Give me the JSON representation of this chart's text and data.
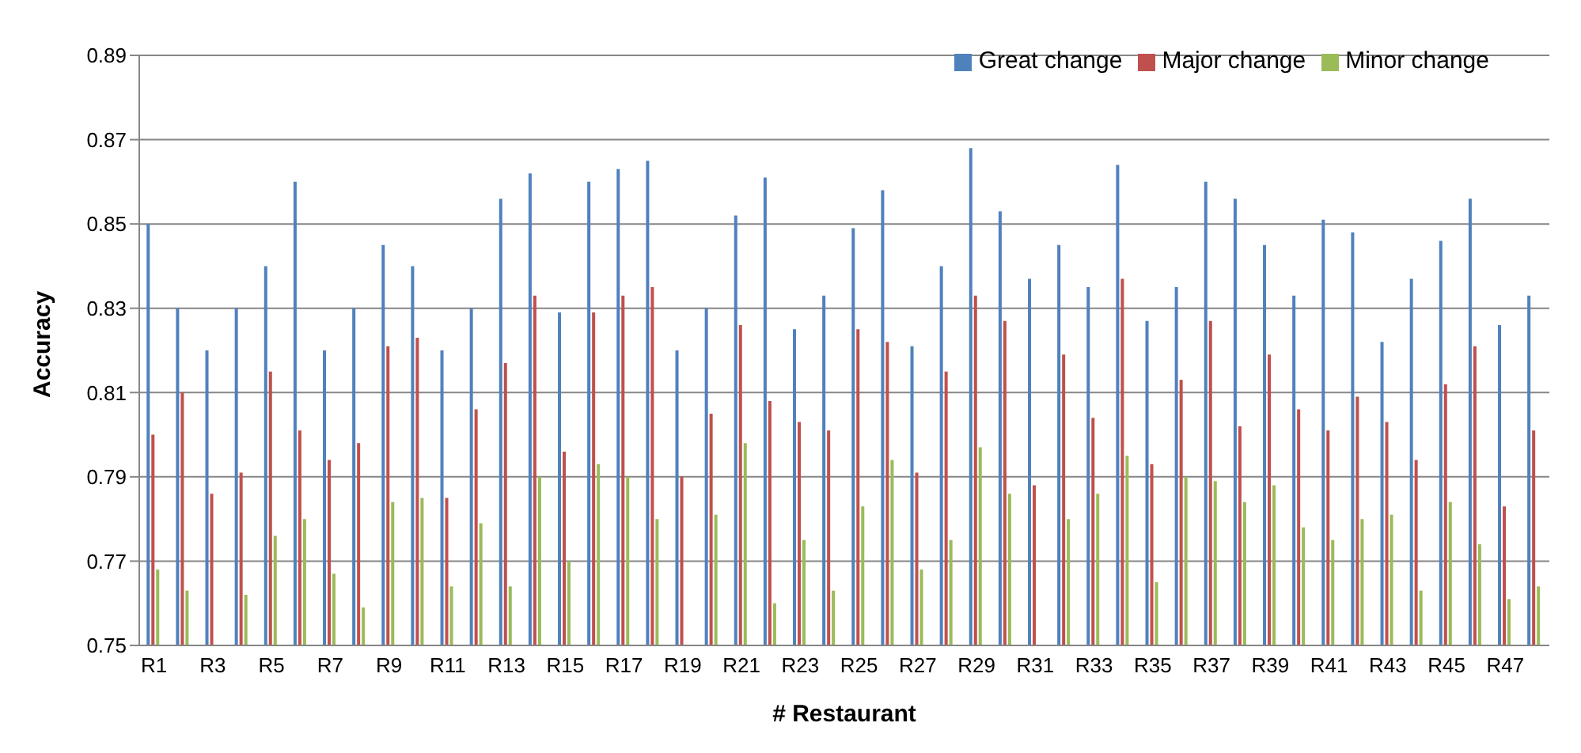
{
  "chart_data": {
    "type": "bar",
    "xlabel": "# Restaurant",
    "ylabel": "Accuracy",
    "categories": [
      "R1",
      null,
      "R3",
      null,
      "R5",
      null,
      "R7",
      null,
      "R9",
      null,
      "R11",
      null,
      "R13",
      null,
      "R15",
      null,
      "R17",
      null,
      "R19",
      null,
      "R21",
      null,
      "R23",
      null,
      "R25",
      null,
      "R27",
      null,
      "R29",
      null,
      "R31",
      null,
      "R33",
      null,
      "R35",
      null,
      "R37",
      null,
      "R39",
      null,
      "R41",
      null,
      "R43",
      null,
      "R45",
      null,
      "R47",
      null
    ],
    "series": [
      {
        "name": "Great change",
        "color": "#4f81bd",
        "values": [
          0.85,
          0.83,
          0.82,
          0.83,
          0.84,
          0.86,
          0.82,
          0.83,
          0.845,
          0.84,
          0.82,
          0.83,
          0.856,
          0.862,
          0.829,
          0.86,
          0.863,
          0.865,
          0.82,
          0.83,
          0.852,
          0.861,
          0.825,
          0.833,
          0.849,
          0.858,
          0.821,
          0.84,
          0.868,
          0.853,
          0.837,
          0.845,
          0.835,
          0.864,
          0.827,
          0.835,
          0.86,
          0.856,
          0.845,
          0.833,
          0.851,
          0.848,
          0.822,
          0.837,
          0.846,
          0.856,
          0.826,
          0.833
        ]
      },
      {
        "name": "Major change",
        "color": "#c0504d",
        "values": [
          0.8,
          0.81,
          0.786,
          0.791,
          0.815,
          0.801,
          0.794,
          0.798,
          0.821,
          0.823,
          0.785,
          0.806,
          0.817,
          0.833,
          0.796,
          0.829,
          0.833,
          0.835,
          0.79,
          0.805,
          0.826,
          0.808,
          0.803,
          0.801,
          0.825,
          0.822,
          0.791,
          0.815,
          0.833,
          0.827,
          0.788,
          0.819,
          0.804,
          0.837,
          0.793,
          0.813,
          0.827,
          0.802,
          0.819,
          0.806,
          0.801,
          0.809,
          0.803,
          0.794,
          0.812,
          0.821,
          0.783,
          0.801
        ]
      },
      {
        "name": "Minor change",
        "color": "#9bbb59",
        "values": [
          0.768,
          0.763,
          null,
          0.762,
          0.776,
          0.78,
          0.767,
          0.759,
          0.784,
          0.785,
          0.764,
          0.779,
          0.764,
          0.79,
          0.77,
          0.793,
          0.79,
          0.78,
          null,
          0.781,
          0.798,
          0.76,
          0.775,
          0.763,
          0.783,
          0.794,
          0.768,
          0.775,
          0.797,
          0.786,
          null,
          0.78,
          0.786,
          0.795,
          0.765,
          0.79,
          0.789,
          0.784,
          0.788,
          0.778,
          0.775,
          0.78,
          0.781,
          0.763,
          0.784,
          0.774,
          0.761,
          0.764
        ]
      }
    ],
    "ylim": [
      0.75,
      0.89
    ],
    "yticks": [
      0.75,
      0.77,
      0.79,
      0.81,
      0.83,
      0.85,
      0.87,
      0.89
    ],
    "grid": "y",
    "legend": "top right"
  }
}
